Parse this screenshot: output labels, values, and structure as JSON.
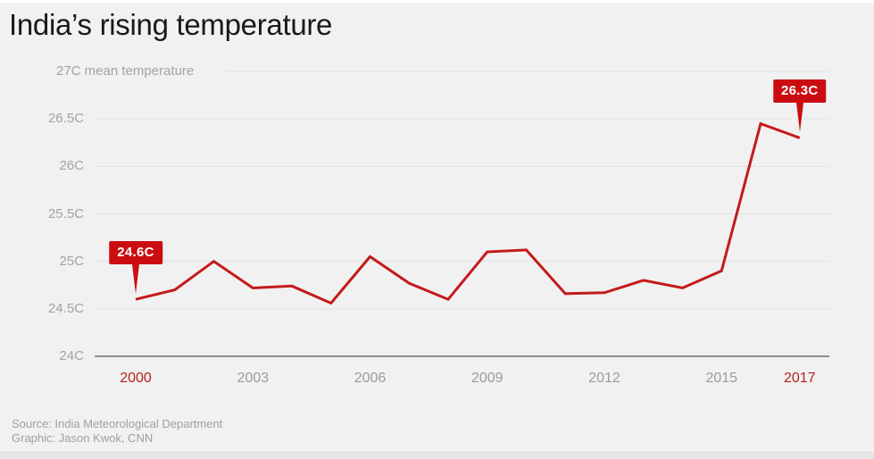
{
  "page": {
    "title": "India’s rising temperature",
    "source": "Source: India Meteorological Department",
    "credit": "Graphic: Jason Kwok, CNN"
  },
  "colors": {
    "background": "#f1f1f1",
    "line_red": "#c41a1a",
    "callout_red": "#cb0d12",
    "tick_highlight_red": "#b5231f",
    "grid_gray": "#e2e2e2",
    "axis_gray": "#8f8f8f",
    "label_gray": "#a3a3a3",
    "title_dark": "#1a1a1a"
  },
  "chart_data": {
    "type": "line",
    "title": "India’s rising temperature",
    "ylabel": "mean temperature",
    "xlabel": "",
    "unit": "C",
    "grid": true,
    "legend": "none",
    "ylim": [
      24,
      27
    ],
    "ytick_step": 0.5,
    "x": [
      2000,
      2001,
      2002,
      2003,
      2004,
      2005,
      2006,
      2007,
      2008,
      2009,
      2010,
      2011,
      2012,
      2013,
      2014,
      2015,
      2016,
      2017
    ],
    "values": [
      24.6,
      24.7,
      25.0,
      24.72,
      24.74,
      24.56,
      25.05,
      24.77,
      24.6,
      25.1,
      25.12,
      24.66,
      24.67,
      24.8,
      24.72,
      24.9,
      26.45,
      26.3
    ],
    "yticks": [
      {
        "value": 27,
        "label": "27C mean temperature"
      },
      {
        "value": 26.5,
        "label": "26.5C"
      },
      {
        "value": 26,
        "label": "26C"
      },
      {
        "value": 25.5,
        "label": "25.5C"
      },
      {
        "value": 25,
        "label": "25C"
      },
      {
        "value": 24.5,
        "label": "24.5C"
      },
      {
        "value": 24,
        "label": "24C"
      }
    ],
    "xticks": [
      {
        "value": 2000,
        "label": "2000",
        "highlight": true
      },
      {
        "value": 2003,
        "label": "2003",
        "highlight": false
      },
      {
        "value": 2006,
        "label": "2006",
        "highlight": false
      },
      {
        "value": 2009,
        "label": "2009",
        "highlight": false
      },
      {
        "value": 2012,
        "label": "2012",
        "highlight": false
      },
      {
        "value": 2015,
        "label": "2015",
        "highlight": false
      },
      {
        "value": 2017,
        "label": "2017",
        "highlight": true
      }
    ],
    "annotations": [
      {
        "x": 2000,
        "y": 24.6,
        "label": "24.6C"
      },
      {
        "x": 2017,
        "y": 26.3,
        "label": "26.3C"
      }
    ]
  }
}
